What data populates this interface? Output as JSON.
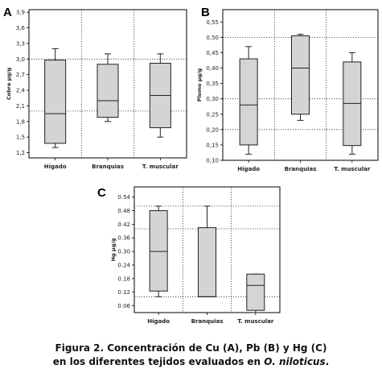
{
  "chart_data": [
    {
      "panel": "A",
      "type": "boxplot",
      "ylabel": "Cobre µg/g",
      "ylim": [
        1.1,
        3.95
      ],
      "yticks": [
        "1,2",
        "1,5",
        "1,8",
        "2,1",
        "2,4",
        "2,7",
        "3,0",
        "3,3",
        "3,6",
        "3,9"
      ],
      "ytick_values": [
        1.2,
        1.5,
        1.8,
        2.1,
        2.4,
        2.7,
        3.0,
        3.3,
        3.6,
        3.9
      ],
      "refline_values": [
        2.0,
        3.0
      ],
      "categories": [
        "Hígado",
        "Branquias",
        "T. muscular"
      ],
      "boxes": [
        {
          "min": 1.3,
          "q1": 1.38,
          "median": 1.95,
          "q3": 2.98,
          "max": 3.2
        },
        {
          "min": 1.8,
          "q1": 1.88,
          "median": 2.2,
          "q3": 2.9,
          "max": 3.1
        },
        {
          "min": 1.5,
          "q1": 1.68,
          "median": 2.3,
          "q3": 2.92,
          "max": 3.1
        }
      ]
    },
    {
      "panel": "B",
      "type": "boxplot",
      "ylabel": "Plomo µg/g",
      "ylim": [
        0.1,
        0.59
      ],
      "yticks": [
        "0,10",
        "0,15",
        "0,20",
        "0,25",
        "0,30",
        "0,35",
        "0,40",
        "0,45",
        "0,50",
        "0,55"
      ],
      "ytick_values": [
        0.1,
        0.15,
        0.2,
        0.25,
        0.3,
        0.35,
        0.4,
        0.45,
        0.5,
        0.55
      ],
      "refline_values": [
        0.2,
        0.3,
        0.5
      ],
      "categories": [
        "Hígado",
        "Branquias",
        "T. muscular"
      ],
      "boxes": [
        {
          "min": 0.12,
          "q1": 0.15,
          "median": 0.28,
          "q3": 0.43,
          "max": 0.47
        },
        {
          "min": 0.23,
          "q1": 0.25,
          "median": 0.4,
          "q3": 0.505,
          "max": 0.51
        },
        {
          "min": 0.12,
          "q1": 0.148,
          "median": 0.285,
          "q3": 0.42,
          "max": 0.45
        }
      ]
    },
    {
      "panel": "C",
      "type": "boxplot",
      "ylabel": "Hg µg/g",
      "ylim": [
        0.03,
        0.585
      ],
      "yticks": [
        "0.06",
        "0.12",
        "0.18",
        "0.24",
        "0.30",
        "0.36",
        "0.42",
        "0.48",
        "0.54"
      ],
      "ytick_values": [
        0.06,
        0.12,
        0.18,
        0.24,
        0.3,
        0.36,
        0.42,
        0.48,
        0.54
      ],
      "refline_values": [
        0.1,
        0.4,
        0.5
      ],
      "categories": [
        "Hígado",
        "Branquias",
        "T. muscular"
      ],
      "boxes": [
        {
          "min": 0.1,
          "q1": 0.125,
          "median": 0.3,
          "q3": 0.48,
          "max": 0.5
        },
        {
          "min": 0.1,
          "q1": 0.1,
          "median": 0.1,
          "q3": 0.405,
          "max": 0.5
        },
        {
          "min": 0.03,
          "q1": 0.04,
          "median": 0.15,
          "q3": 0.2,
          "max": 0.2
        }
      ]
    }
  ],
  "caption": {
    "line1": "Figura 2. Concentración de Cu (A), Pb (B) y Hg (C)",
    "line2_prefix": "en los diferentes tejidos evaluados en ",
    "line2_species": "O. niloticus",
    "line2_suffix": "."
  }
}
